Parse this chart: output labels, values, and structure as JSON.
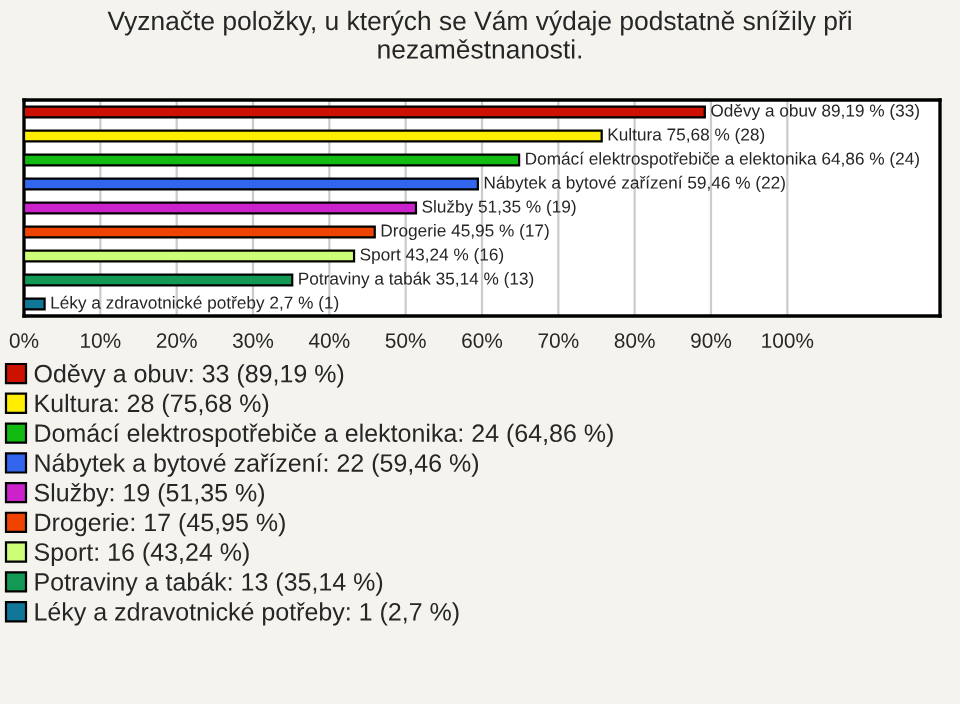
{
  "chart_data": {
    "type": "bar",
    "orientation": "horizontal",
    "title": "Vyznačte položky, u kterých se Vám výdaje podstatně snížily při nezaměstnanosti.",
    "categories": [
      null,
      null,
      null,
      null,
      null,
      null,
      null,
      null,
      null
    ],
    "series": [
      {
        "name": "Oděvy a obuv: 33 (89,19 %)",
        "color": "#cc1100",
        "values": [
          89.19,
          null,
          null,
          null,
          null,
          null,
          null,
          null,
          null
        ],
        "value_labels": [
          "Oděvy a obuv 89,19 % (33)",
          null,
          null,
          null,
          null,
          null,
          null,
          null,
          null
        ]
      },
      {
        "name": "Kultura: 28 (75,68 %)",
        "color": "#ffee00",
        "values": [
          null,
          75.68,
          null,
          null,
          null,
          null,
          null,
          null,
          null
        ],
        "value_labels": [
          null,
          "Kultura 75,68 % (28)",
          null,
          null,
          null,
          null,
          null,
          null,
          null
        ]
      },
      {
        "name": "Domácí elektrospotřebiče a elektonika: 24 (64,86 %)",
        "color": "#11bb11",
        "values": [
          null,
          null,
          64.86,
          null,
          null,
          null,
          null,
          null,
          null
        ],
        "value_labels": [
          null,
          null,
          "Domácí elektrospotřebiče a elektonika 64,86 % (24)",
          null,
          null,
          null,
          null,
          null,
          null
        ]
      },
      {
        "name": "Nábytek a bytové zařízení: 22 (59,46 %)",
        "color": "#3366ee",
        "values": [
          null,
          null,
          null,
          59.46,
          null,
          null,
          null,
          null,
          null
        ],
        "value_labels": [
          null,
          null,
          null,
          "Nábytek a bytové zařízení 59,46 % (22)",
          null,
          null,
          null,
          null,
          null
        ]
      },
      {
        "name": "Služby: 19 (51,35 %)",
        "color": "#cc22cc",
        "values": [
          null,
          null,
          null,
          null,
          51.35,
          null,
          null,
          null,
          null
        ],
        "value_labels": [
          null,
          null,
          null,
          null,
          "Služby 51,35 % (19)",
          null,
          null,
          null,
          null
        ]
      },
      {
        "name": "Drogerie: 17 (45,95 %)",
        "color": "#ee4400",
        "values": [
          null,
          null,
          null,
          null,
          null,
          45.95,
          null,
          null,
          null
        ],
        "value_labels": [
          null,
          null,
          null,
          null,
          null,
          "Drogerie 45,95 % (17)",
          null,
          null,
          null
        ]
      },
      {
        "name": "Sport: 16 (43,24 %)",
        "color": "#ccff77",
        "values": [
          null,
          null,
          null,
          null,
          null,
          null,
          43.24,
          null,
          null
        ],
        "value_labels": [
          null,
          null,
          null,
          null,
          null,
          null,
          "Sport 43,24 % (16)",
          null,
          null
        ]
      },
      {
        "name": "Potraviny a tabák: 13 (35,14 %)",
        "color": "#119955",
        "values": [
          null,
          null,
          null,
          null,
          null,
          null,
          null,
          35.14,
          null
        ],
        "value_labels": [
          null,
          null,
          null,
          null,
          null,
          null,
          null,
          "Potraviny a tabák 35,14 % (13)",
          null
        ]
      },
      {
        "name": "Léky a zdravotnické potřeby: 1 (2,7 %)",
        "color": "#117799",
        "values": [
          null,
          null,
          null,
          null,
          null,
          null,
          null,
          null,
          2.7
        ],
        "value_labels": [
          null,
          null,
          null,
          null,
          null,
          null,
          null,
          null,
          "Léky a zdravotnické potřeby 2,7 % (1)"
        ]
      }
    ],
    "xlim": [
      0,
      120
    ],
    "xticks": [
      {
        "value": 0,
        "label": "0%"
      },
      {
        "value": 10,
        "label": "10%"
      },
      {
        "value": 20,
        "label": "20%"
      },
      {
        "value": 30,
        "label": "30%"
      },
      {
        "value": 40,
        "label": "40%"
      },
      {
        "value": 50,
        "label": "50%"
      },
      {
        "value": 60,
        "label": "60%"
      },
      {
        "value": 70,
        "label": "70%"
      },
      {
        "value": 80,
        "label": "80%"
      },
      {
        "value": 90,
        "label": "90%"
      },
      {
        "value": 100,
        "label": "100%"
      }
    ],
    "grid": "x",
    "legend": "bottom"
  }
}
